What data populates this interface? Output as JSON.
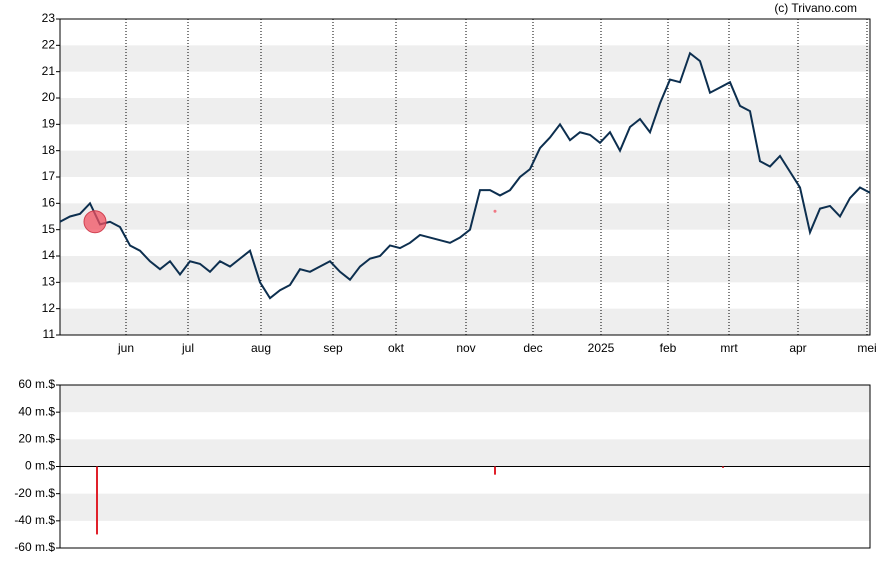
{
  "source": "(c) Trivano.com",
  "chart_data": [
    {
      "type": "line",
      "xlim": [
        0,
        81
      ],
      "xticks": [
        {
          "value": 6.6,
          "label": "jun"
        },
        {
          "value": 12.8,
          "label": "jul"
        },
        {
          "value": 20.1,
          "label": "aug"
        },
        {
          "value": 27.3,
          "label": "sep"
        },
        {
          "value": 33.6,
          "label": "okt"
        },
        {
          "value": 40.6,
          "label": "nov"
        },
        {
          "value": 47.3,
          "label": "dec"
        },
        {
          "value": 54.1,
          "label": "2025"
        },
        {
          "value": 60.8,
          "label": "feb"
        },
        {
          "value": 66.9,
          "label": "mrt"
        },
        {
          "value": 73.8,
          "label": "apr"
        },
        {
          "value": 80.7,
          "label": "mei"
        }
      ],
      "ylim": [
        11,
        23
      ],
      "yticks": [
        11,
        12,
        13,
        14,
        15,
        16,
        17,
        18,
        19,
        20,
        21,
        22,
        23
      ],
      "grid": true,
      "color": "#0d2f4f",
      "values": [
        15.3,
        15.5,
        15.6,
        16.0,
        15.2,
        15.3,
        15.1,
        14.4,
        14.2,
        13.8,
        13.5,
        13.8,
        13.3,
        13.8,
        13.7,
        13.4,
        13.8,
        13.6,
        13.9,
        14.2,
        13.0,
        12.4,
        12.7,
        12.9,
        13.5,
        13.4,
        13.6,
        13.8,
        13.4,
        13.1,
        13.6,
        13.9,
        14.0,
        14.4,
        14.3,
        14.5,
        14.8,
        14.7,
        14.6,
        14.5,
        14.7,
        15.0,
        16.5,
        16.5,
        16.3,
        16.5,
        17.0,
        17.3,
        18.1,
        18.5,
        19.0,
        18.4,
        18.7,
        18.6,
        18.3,
        18.7,
        18.0,
        18.9,
        19.2,
        18.7,
        19.8,
        20.7,
        20.6,
        21.7,
        21.4,
        20.2,
        20.4,
        20.6,
        19.7,
        19.5,
        17.6,
        17.4,
        17.8,
        17.2,
        16.6,
        14.9,
        15.8,
        15.9,
        15.5,
        16.2,
        16.6,
        16.4
      ],
      "markers": {
        "x": [
          3.5,
          43.5
        ],
        "values": [
          15.3,
          15.7
        ],
        "color": "#f05060"
      }
    },
    {
      "type": "bar",
      "xlim": [
        0,
        81
      ],
      "ylim": [
        -60,
        60
      ],
      "yticks": [
        {
          "value": 60,
          "label": "60 m.$"
        },
        {
          "value": 40,
          "label": "40 m.$"
        },
        {
          "value": 20,
          "label": "20 m.$"
        },
        {
          "value": 0,
          "label": "0 m.$"
        },
        {
          "value": -20,
          "label": "-20 m.$"
        },
        {
          "value": -40,
          "label": "-40 m.$"
        },
        {
          "value": -60,
          "label": "-60 m.$"
        }
      ],
      "grid": true,
      "color": "#e0202a",
      "x": [
        3.7,
        43.5,
        66.3
      ],
      "values": [
        -50,
        -6,
        -1
      ]
    }
  ]
}
